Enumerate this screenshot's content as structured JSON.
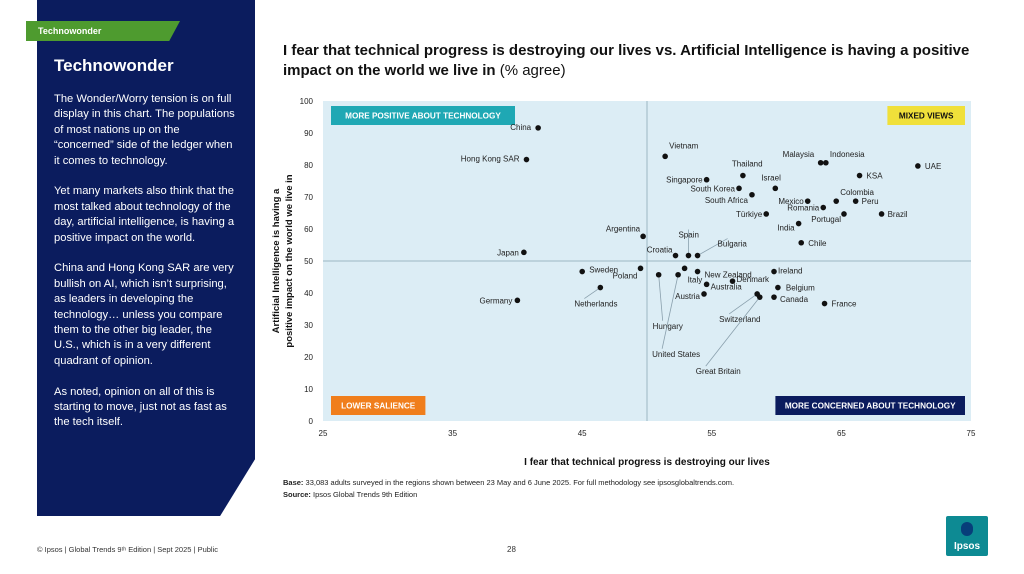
{
  "section_tag": "Technowonder",
  "sidebar": {
    "title": "Technowonder",
    "paragraphs": [
      "The Wonder/Worry tension is on full display in this chart. The populations of most nations up on the “concerned” side of the ledger when it comes to technology.",
      "Yet many markets also think that the most talked about technology of the day, artificial intelligence, is having a positive impact on the world.",
      "China and Hong Kong SAR are very bullish on AI, which isn’t surprising, as leaders in developing the technology… unless you compare them to the other big leader, the U.S., which is in a very different quadrant of opinion.",
      "As noted, opinion on all of this is starting to move, just not as fast as the tech itself."
    ]
  },
  "chart_data": {
    "type": "scatter",
    "title": "I fear that technical progress is destroying our lives vs. Artificial Intelligence is having a positive impact on the world we live in",
    "title_unit": "(% agree)",
    "xlabel": "I fear that technical progress is destroying our lives",
    "ylabel_line1": "Artificial Intelligence is having a",
    "ylabel_line2": "positive impact on the world we live in",
    "xlim": [
      25,
      75
    ],
    "ylim": [
      0,
      100
    ],
    "xticks": [
      25,
      35,
      45,
      55,
      65,
      75
    ],
    "yticks": [
      0,
      10,
      20,
      30,
      40,
      50,
      60,
      70,
      80,
      90,
      100
    ],
    "divider": {
      "x": 50,
      "y": 50
    },
    "quadrants": {
      "top_left": "MORE POSITIVE ABOUT TECHNOLOGY",
      "top_right": "MIXED VIEWS",
      "bottom_left": "LOWER SALIENCE",
      "bottom_right": "MORE CONCERNED ABOUT TECHNOLOGY"
    },
    "colors": {
      "plot_bg": "#dcedf5",
      "top_left": "#1fa8b4",
      "top_right": "#f0e03a",
      "bottom_left": "#f07e1c",
      "bottom_right": "#0b1c5e",
      "point": "#111111"
    },
    "points": [
      {
        "name": "China",
        "x": 41.6,
        "y": 91.6
      },
      {
        "name": "Hong Kong SAR",
        "x": 40.7,
        "y": 81.7
      },
      {
        "name": "Vietnam",
        "x": 51.4,
        "y": 82.7
      },
      {
        "name": "Thailand",
        "x": 57.4,
        "y": 76.7
      },
      {
        "name": "Malaysia",
        "x": 63.4,
        "y": 80.7
      },
      {
        "name": "Indonesia",
        "x": 63.8,
        "y": 80.7
      },
      {
        "name": "UAE",
        "x": 70.9,
        "y": 79.7
      },
      {
        "name": "KSA",
        "x": 66.4,
        "y": 76.7
      },
      {
        "name": "Singapore",
        "x": 54.6,
        "y": 75.4
      },
      {
        "name": "Israel",
        "x": 59.9,
        "y": 72.7
      },
      {
        "name": "South Korea",
        "x": 57.1,
        "y": 72.7
      },
      {
        "name": "South Africa",
        "x": 58.1,
        "y": 70.7
      },
      {
        "name": "Colombia",
        "x": 64.6,
        "y": 68.7
      },
      {
        "name": "Peru",
        "x": 66.1,
        "y": 68.7
      },
      {
        "name": "Mexico",
        "x": 62.4,
        "y": 68.7
      },
      {
        "name": "Romania",
        "x": 63.6,
        "y": 66.7
      },
      {
        "name": "Portugal",
        "x": 65.2,
        "y": 64.7
      },
      {
        "name": "Brazil",
        "x": 68.1,
        "y": 64.7
      },
      {
        "name": "Türkiye",
        "x": 59.2,
        "y": 64.7
      },
      {
        "name": "India",
        "x": 61.7,
        "y": 61.7
      },
      {
        "name": "Chile",
        "x": 61.9,
        "y": 55.7
      },
      {
        "name": "Argentina",
        "x": 49.7,
        "y": 57.7
      },
      {
        "name": "Japan",
        "x": 40.5,
        "y": 52.7
      },
      {
        "name": "Croatia",
        "x": 52.2,
        "y": 51.7
      },
      {
        "name": "Spain",
        "x": 53.2,
        "y": 51.7
      },
      {
        "name": "Bulgaria",
        "x": 53.9,
        "y": 51.7
      },
      {
        "name": "Sweden",
        "x": 45.0,
        "y": 46.7
      },
      {
        "name": "Poland",
        "x": 49.5,
        "y": 47.7
      },
      {
        "name": "Italy",
        "x": 52.9,
        "y": 47.7
      },
      {
        "name": "New Zealand",
        "x": 53.9,
        "y": 46.7
      },
      {
        "name": "Ireland",
        "x": 59.8,
        "y": 46.7
      },
      {
        "name": "Hungary",
        "x": 50.9,
        "y": 45.7
      },
      {
        "name": "United States",
        "x": 52.4,
        "y": 45.7
      },
      {
        "name": "Denmark",
        "x": 56.6,
        "y": 43.7
      },
      {
        "name": "Australia",
        "x": 54.6,
        "y": 42.7
      },
      {
        "name": "Belgium",
        "x": 60.1,
        "y": 41.7
      },
      {
        "name": "Netherlands",
        "x": 46.4,
        "y": 41.7
      },
      {
        "name": "Austria",
        "x": 54.4,
        "y": 39.7
      },
      {
        "name": "Switzerland",
        "x": 58.5,
        "y": 39.7
      },
      {
        "name": "Great Britain",
        "x": 58.7,
        "y": 38.7
      },
      {
        "name": "Canada",
        "x": 59.8,
        "y": 38.7
      },
      {
        "name": "Germany",
        "x": 40.0,
        "y": 37.7
      },
      {
        "name": "France",
        "x": 63.7,
        "y": 36.7
      }
    ]
  },
  "base_label": "Base:",
  "base_text": " 33,083 adults surveyed in the regions shown between 23 May and 6 June 2025. For full methodology see ipsosglobaltrends.com.",
  "source_label": "Source:",
  "source_text": " Ipsos Global Trends 9th Edition",
  "footer_left": "© Ipsos | Global Trends 9ᵗʰ Edition | Sept 2025 | Public",
  "page_number": "28",
  "logo_text": "Ipsos"
}
